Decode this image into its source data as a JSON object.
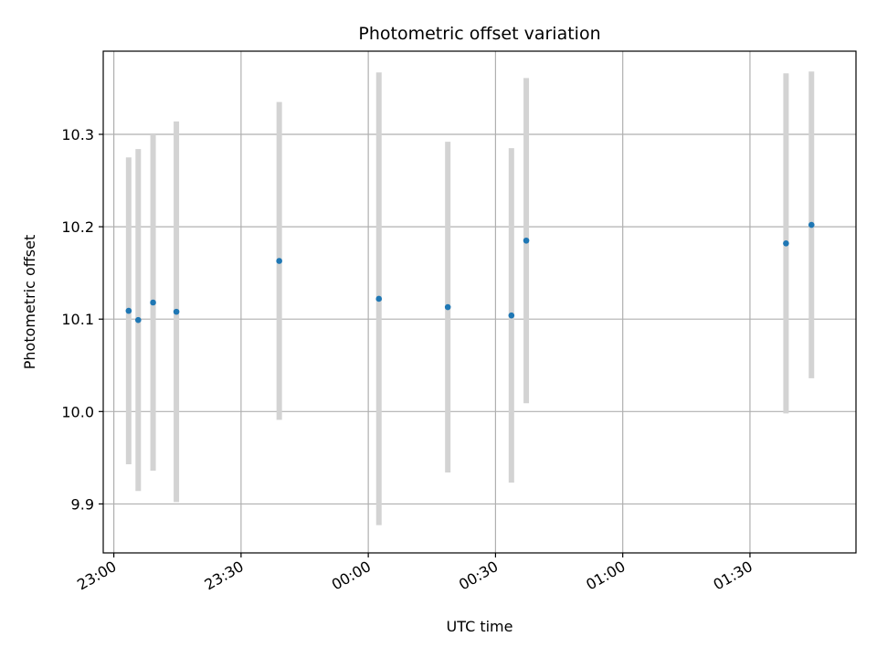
{
  "chart_data": {
    "type": "scatter",
    "title": "Photometric offset variation",
    "xlabel": "UTC time",
    "ylabel": "Photometric offset",
    "grid": true,
    "xlim": [
      "22:57:30",
      "01:55:00"
    ],
    "ylim": [
      9.847,
      10.39
    ],
    "x_ticks": [
      "23:00",
      "23:30",
      "00:00",
      "00:30",
      "01:00",
      "01:30"
    ],
    "y_ticks": [
      9.9,
      10.0,
      10.1,
      10.2,
      10.3
    ],
    "y_tick_labels": [
      "9.9",
      "10.0",
      "10.1",
      "10.2",
      "10.3"
    ],
    "errorbar_color": "#d3d3d3",
    "point_color": "#1f77b4",
    "points": [
      {
        "x": "23:03:30",
        "y": 10.109,
        "err": 0.166
      },
      {
        "x": "23:05:45",
        "y": 10.099,
        "err": 0.185
      },
      {
        "x": "23:09:15",
        "y": 10.118,
        "err": 0.182
      },
      {
        "x": "23:14:45",
        "y": 10.108,
        "err": 0.206
      },
      {
        "x": "23:39:00",
        "y": 10.163,
        "err": 0.172
      },
      {
        "x": "00:02:30",
        "y": 10.122,
        "err": 0.245
      },
      {
        "x": "00:18:45",
        "y": 10.113,
        "err": 0.179
      },
      {
        "x": "00:33:45",
        "y": 10.104,
        "err": 0.181
      },
      {
        "x": "00:37:15",
        "y": 10.185,
        "err": 0.176
      },
      {
        "x": "01:38:30",
        "y": 10.182,
        "err": 0.184
      },
      {
        "x": "01:44:30",
        "y": 10.202,
        "err": 0.166
      }
    ]
  }
}
